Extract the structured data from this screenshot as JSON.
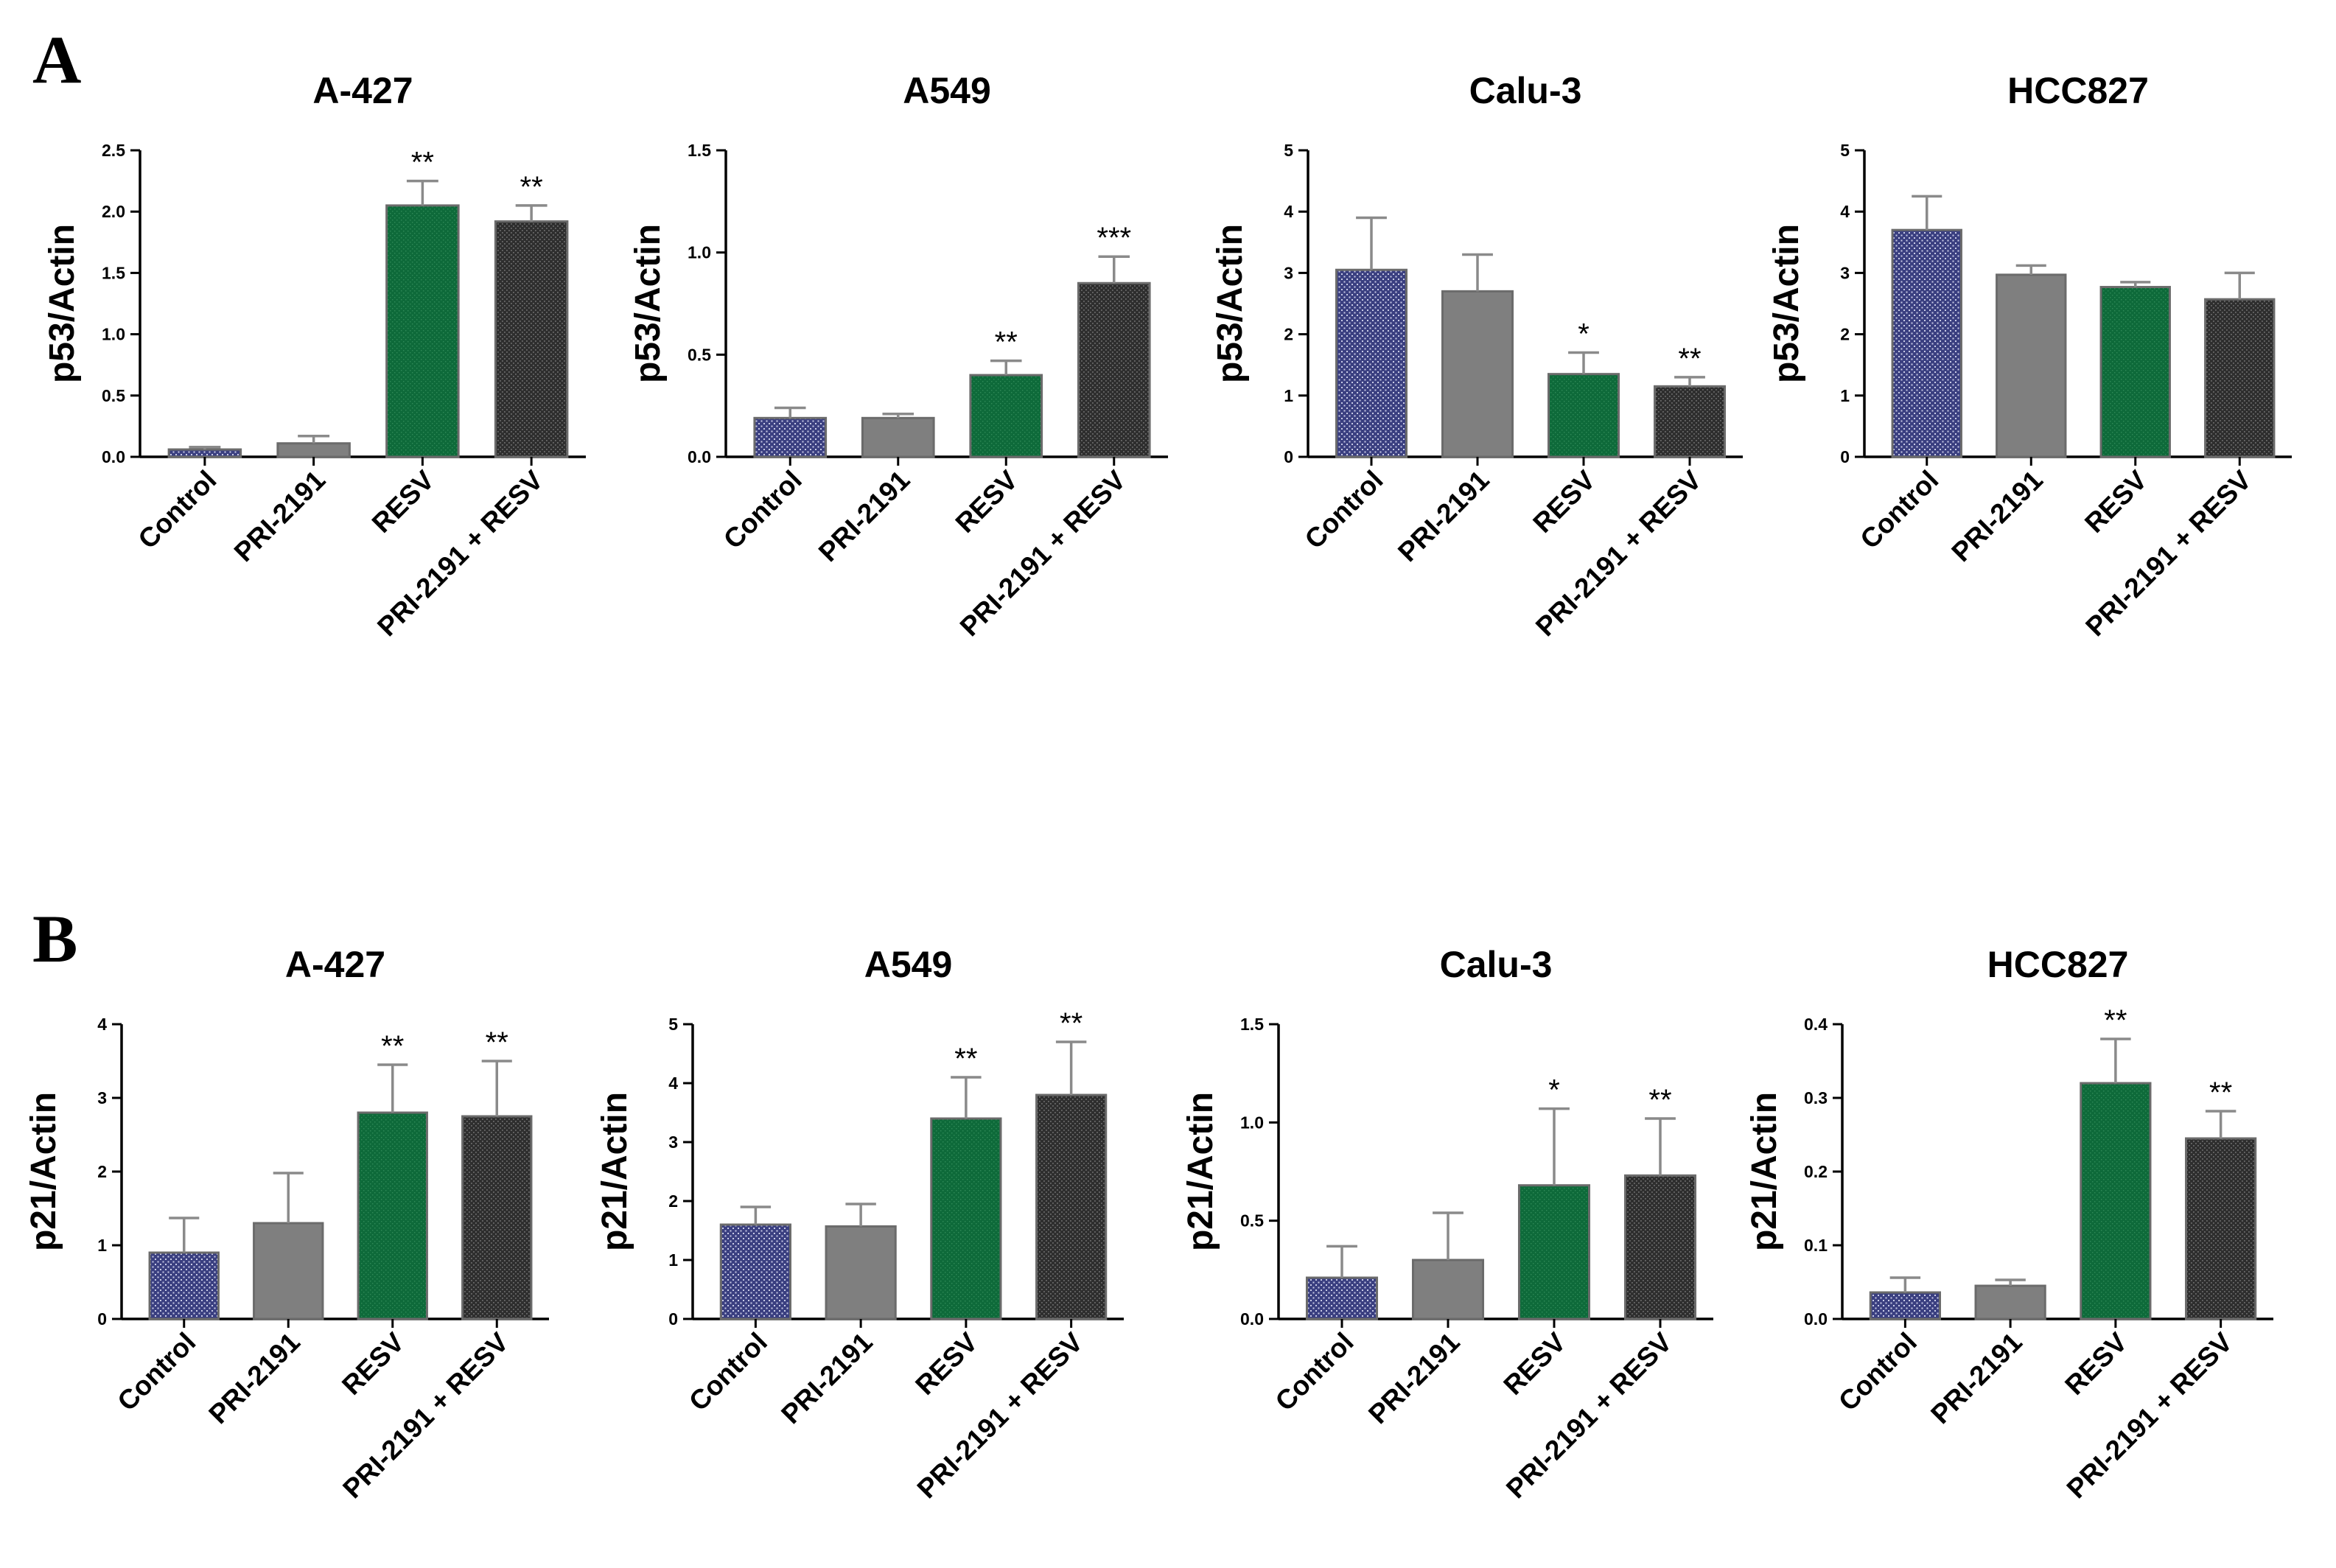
{
  "panels": [
    {
      "label": "A",
      "ylabel": "p53/Actin"
    },
    {
      "label": "B",
      "ylabel": "p21/Actin"
    }
  ],
  "colors": {
    "Control": "#3a3f80",
    "PRI-2191": "#7f7f7f",
    "RESV": "#0e6a3a",
    "PRI-2191 + RESV": "#2e2e2e",
    "errorbar": "#8a8a8a"
  },
  "chart_data": [
    {
      "type": "bar",
      "panel": "A",
      "title": "A-427",
      "ylabel": "p53/Actin",
      "categories": [
        "Control",
        "PRI-2191",
        "RESV",
        "PRI-2191 + RESV"
      ],
      "values": [
        0.06,
        0.11,
        2.05,
        1.92
      ],
      "errors": [
        0.02,
        0.06,
        0.2,
        0.13
      ],
      "significance": [
        "",
        "",
        "**",
        "**"
      ],
      "ylim": [
        0,
        2.5
      ],
      "yticks": [
        0.0,
        0.5,
        1.0,
        1.5,
        2.0,
        2.5
      ],
      "ytick_labels": [
        "0.0",
        "0.5",
        "1.0",
        "1.5",
        "2.0",
        "2.5"
      ]
    },
    {
      "type": "bar",
      "panel": "A",
      "title": "A549",
      "ylabel": "p53/Actin",
      "categories": [
        "Control",
        "PRI-2191",
        "RESV",
        "PRI-2191 + RESV"
      ],
      "values": [
        0.19,
        0.19,
        0.4,
        0.85
      ],
      "errors": [
        0.05,
        0.02,
        0.07,
        0.13
      ],
      "significance": [
        "",
        "",
        "**",
        "***"
      ],
      "ylim": [
        0,
        1.5
      ],
      "yticks": [
        0.0,
        0.5,
        1.0,
        1.5
      ],
      "ytick_labels": [
        "0.0",
        "0.5",
        "1.0",
        "1.5"
      ]
    },
    {
      "type": "bar",
      "panel": "A",
      "title": "Calu-3",
      "ylabel": "p53/Actin",
      "categories": [
        "Control",
        "PRI-2191",
        "RESV",
        "PRI-2191 + RESV"
      ],
      "values": [
        3.05,
        2.7,
        1.35,
        1.15
      ],
      "errors": [
        0.85,
        0.6,
        0.35,
        0.15
      ],
      "significance": [
        "",
        "",
        "*",
        "**"
      ],
      "ylim": [
        0,
        5
      ],
      "yticks": [
        0,
        1,
        2,
        3,
        4,
        5
      ],
      "ytick_labels": [
        "0",
        "1",
        "2",
        "3",
        "4",
        "5"
      ]
    },
    {
      "type": "bar",
      "panel": "A",
      "title": "HCC827",
      "ylabel": "p53/Actin",
      "categories": [
        "Control",
        "PRI-2191",
        "RESV",
        "PRI-2191 + RESV"
      ],
      "values": [
        3.7,
        2.97,
        2.77,
        2.57
      ],
      "errors": [
        0.55,
        0.15,
        0.08,
        0.43
      ],
      "significance": [
        "",
        "",
        "",
        ""
      ],
      "ylim": [
        0,
        5
      ],
      "yticks": [
        0,
        1,
        2,
        3,
        4,
        5
      ],
      "ytick_labels": [
        "0",
        "1",
        "2",
        "3",
        "4",
        "5"
      ]
    },
    {
      "type": "bar",
      "panel": "B",
      "title": "A-427",
      "ylabel": "p21/Actin",
      "categories": [
        "Control",
        "PRI-2191",
        "RESV",
        "PRI-2191 + RESV"
      ],
      "values": [
        0.9,
        1.3,
        2.8,
        2.75
      ],
      "errors": [
        0.47,
        0.68,
        0.65,
        0.75
      ],
      "significance": [
        "",
        "",
        "**",
        "**"
      ],
      "ylim": [
        0,
        4
      ],
      "yticks": [
        0,
        1,
        2,
        3,
        4
      ],
      "ytick_labels": [
        "0",
        "1",
        "2",
        "3",
        "4"
      ]
    },
    {
      "type": "bar",
      "panel": "B",
      "title": "A549",
      "ylabel": "p21/Actin",
      "categories": [
        "Control",
        "PRI-2191",
        "RESV",
        "PRI-2191 + RESV"
      ],
      "values": [
        1.6,
        1.57,
        3.4,
        3.8
      ],
      "errors": [
        0.3,
        0.38,
        0.7,
        0.9
      ],
      "significance": [
        "",
        "",
        "**",
        "**"
      ],
      "ylim": [
        0,
        5
      ],
      "yticks": [
        0,
        1,
        2,
        3,
        4,
        5
      ],
      "ytick_labels": [
        "0",
        "1",
        "2",
        "3",
        "4",
        "5"
      ]
    },
    {
      "type": "bar",
      "panel": "B",
      "title": "Calu-3",
      "ylabel": "p21/Actin",
      "categories": [
        "Control",
        "PRI-2191",
        "RESV",
        "PRI-2191 + RESV"
      ],
      "values": [
        0.21,
        0.3,
        0.68,
        0.73
      ],
      "errors": [
        0.16,
        0.24,
        0.39,
        0.29
      ],
      "significance": [
        "",
        "",
        "*",
        "**"
      ],
      "ylim": [
        0,
        1.5
      ],
      "yticks": [
        0.0,
        0.5,
        1.0,
        1.5
      ],
      "ytick_labels": [
        "0.0",
        "0.5",
        "1.0",
        "1.5"
      ]
    },
    {
      "type": "bar",
      "panel": "B",
      "title": "HCC827",
      "ylabel": "p21/Actin",
      "categories": [
        "Control",
        "PRI-2191",
        "RESV",
        "PRI-2191 + RESV"
      ],
      "values": [
        0.036,
        0.045,
        0.32,
        0.245
      ],
      "errors": [
        0.02,
        0.008,
        0.06,
        0.037
      ],
      "significance": [
        "",
        "",
        "**",
        "**"
      ],
      "ylim": [
        0,
        0.4
      ],
      "yticks": [
        0.0,
        0.1,
        0.2,
        0.3,
        0.4
      ],
      "ytick_labels": [
        "0.0",
        "0.1",
        "0.2",
        "0.3",
        "0.4"
      ]
    }
  ]
}
